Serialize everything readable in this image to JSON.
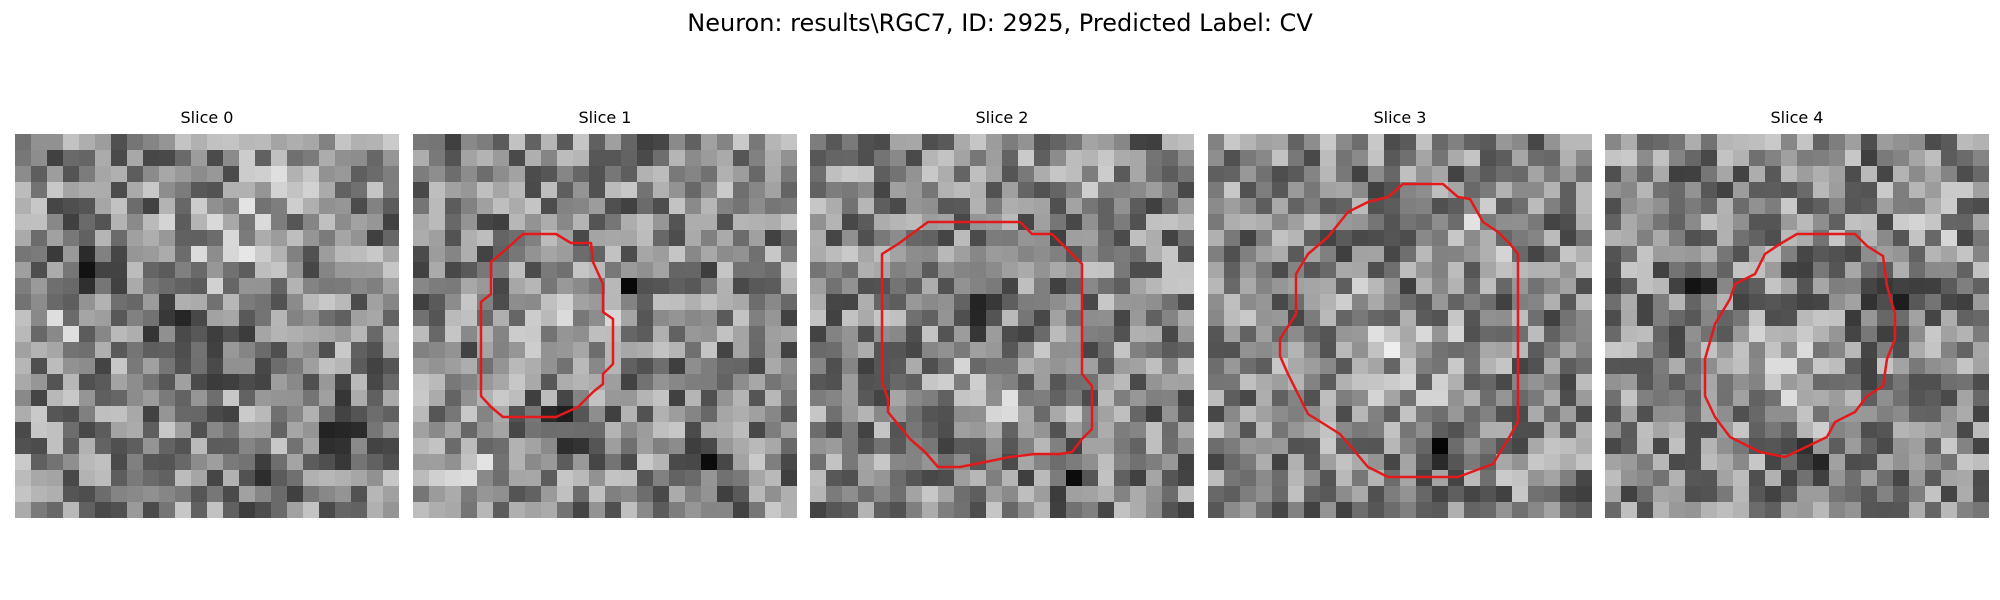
{
  "figure": {
    "title": "Neuron: results\\RGC7, ID: 2925, Predicted Label: CV"
  },
  "slices": [
    {
      "title": "Slice 0",
      "has_contour": false
    },
    {
      "title": "Slice 1",
      "has_contour": true
    },
    {
      "title": "Slice 2",
      "has_contour": true
    },
    {
      "title": "Slice 3",
      "has_contour": true
    },
    {
      "title": "Slice 4",
      "has_contour": true
    }
  ],
  "colors": {
    "contour": "#e31a1c",
    "background": "#ffffff",
    "colormap": "gray"
  }
}
